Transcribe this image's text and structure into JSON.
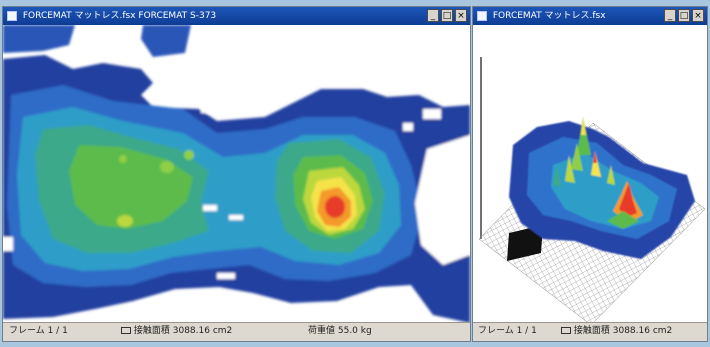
{
  "window_main": {
    "title": "FORCEMAT マットレス.fsx  FORCEMAT S-373",
    "controls": [
      "_",
      "□",
      "×"
    ],
    "status": {
      "frame": "フレーム 1 / 1",
      "contact_area": "接触面積  3088.16 cm2",
      "total_load": "荷重値  55.0 kg"
    }
  },
  "window_3d": {
    "title": "FORCEMAT マットレス.fsx",
    "controls": [
      "_",
      "□",
      "×"
    ],
    "status": {
      "frame": "フレーム 1 / 1",
      "contact_area": "接触面積  3088.16 cm2"
    }
  },
  "colors": {
    "desktop": "#a9c6df",
    "titlebar": "#1d56b8",
    "pressure_scale": [
      "#1f3f9b",
      "#2e63c4",
      "#2f9ec8",
      "#3aa98a",
      "#5cbb4c",
      "#bcd83e",
      "#f5e34a",
      "#f39a2c",
      "#e83a2b"
    ]
  }
}
